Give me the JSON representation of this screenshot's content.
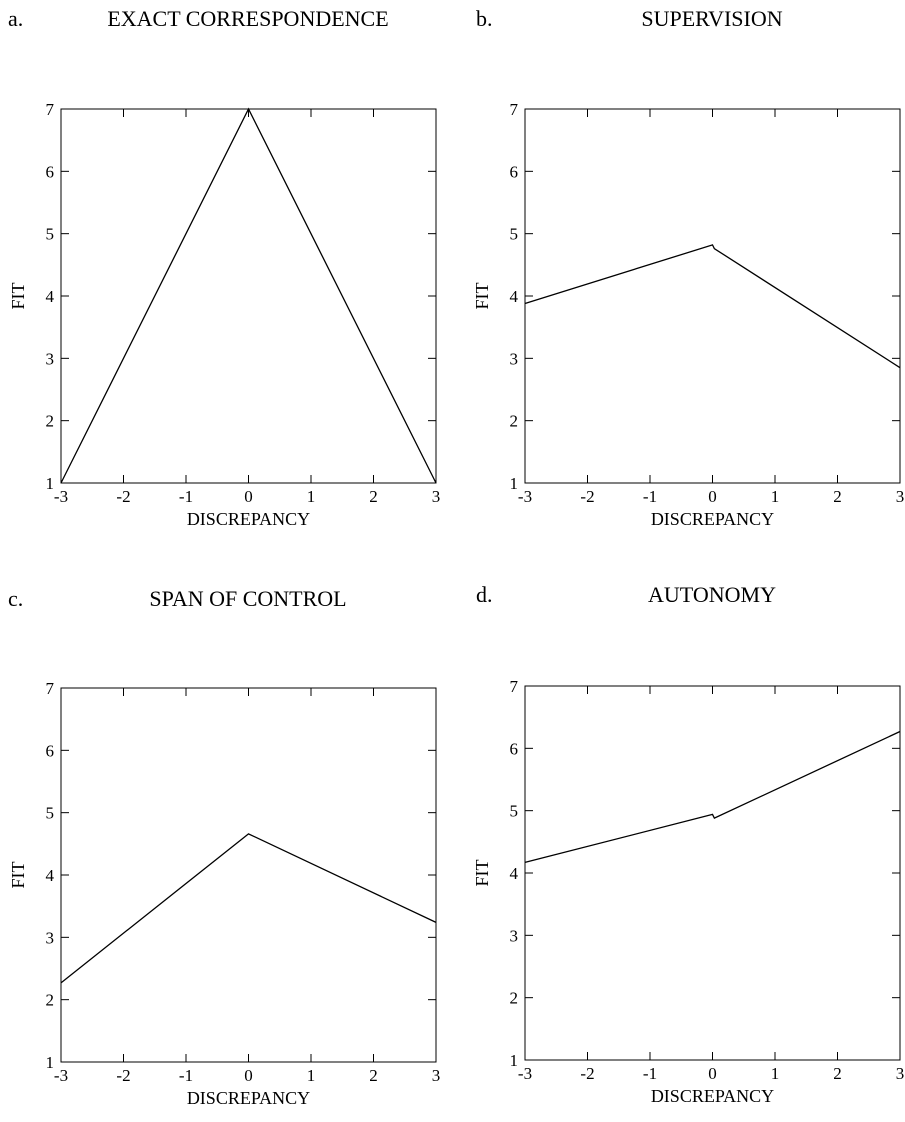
{
  "chart_data": [
    {
      "type": "line",
      "panel_label": "a.",
      "title": "EXACT CORRESPONDENCE",
      "xlabel": "DISCREPANCY",
      "ylabel": "FIT",
      "xlim": [
        -3,
        3
      ],
      "ylim": [
        1,
        7
      ],
      "xticks": [
        -3,
        -2,
        -1,
        0,
        1,
        2,
        3
      ],
      "yticks": [
        1,
        2,
        3,
        4,
        5,
        6,
        7
      ],
      "xtick_labels": [
        "-3",
        "-2",
        "-1",
        "0",
        "1",
        "2",
        "3"
      ],
      "ytick_labels": [
        "1",
        "2",
        "3",
        "4",
        "5",
        "6",
        "7"
      ],
      "grid": false,
      "series": [
        {
          "x": [
            -3,
            0,
            3
          ],
          "y": [
            1,
            7,
            1
          ]
        }
      ]
    },
    {
      "type": "line",
      "panel_label": "b.",
      "title": "SUPERVISION",
      "xlabel": "DISCREPANCY",
      "ylabel": "FIT",
      "xlim": [
        -3,
        3
      ],
      "ylim": [
        1,
        7
      ],
      "xticks": [
        -3,
        -2,
        -1,
        0,
        1,
        2,
        3
      ],
      "yticks": [
        1,
        2,
        3,
        4,
        5,
        6,
        7
      ],
      "xtick_labels": [
        "-3",
        "-2",
        "-1",
        "0",
        "1",
        "2",
        "3"
      ],
      "ytick_labels": [
        "1",
        "2",
        "3",
        "4",
        "5",
        "6",
        "7"
      ],
      "grid": false,
      "series": [
        {
          "x": [
            -3,
            0,
            0.03,
            3
          ],
          "y": [
            3.88,
            4.82,
            4.76,
            2.85
          ]
        }
      ]
    },
    {
      "type": "line",
      "panel_label": "c.",
      "title": "SPAN OF CONTROL",
      "xlabel": "DISCREPANCY",
      "ylabel": "FIT",
      "xlim": [
        -3,
        3
      ],
      "ylim": [
        1,
        7
      ],
      "xticks": [
        -3,
        -2,
        -1,
        0,
        1,
        2,
        3
      ],
      "yticks": [
        1,
        2,
        3,
        4,
        5,
        6,
        7
      ],
      "xtick_labels": [
        "-3",
        "-2",
        "-1",
        "0",
        "1",
        "2",
        "3"
      ],
      "ytick_labels": [
        "1",
        "2",
        "3",
        "4",
        "5",
        "6",
        "7"
      ],
      "grid": false,
      "series": [
        {
          "x": [
            -3,
            0,
            3
          ],
          "y": [
            2.27,
            4.66,
            3.24
          ]
        }
      ]
    },
    {
      "type": "line",
      "panel_label": "d.",
      "title": "AUTONOMY",
      "xlabel": "DISCREPANCY",
      "ylabel": "FIT",
      "xlim": [
        -3,
        3
      ],
      "ylim": [
        1,
        7
      ],
      "xticks": [
        -3,
        -2,
        -1,
        0,
        1,
        2,
        3
      ],
      "yticks": [
        1,
        2,
        3,
        4,
        5,
        6,
        7
      ],
      "xtick_labels": [
        "-3",
        "-2",
        "-1",
        "0",
        "1",
        "2",
        "3"
      ],
      "ytick_labels": [
        "1",
        "2",
        "3",
        "4",
        "5",
        "6",
        "7"
      ],
      "grid": false,
      "series": [
        {
          "x": [
            -3,
            0,
            0.03,
            3
          ],
          "y": [
            4.17,
            4.94,
            4.88,
            6.27
          ]
        }
      ]
    }
  ]
}
